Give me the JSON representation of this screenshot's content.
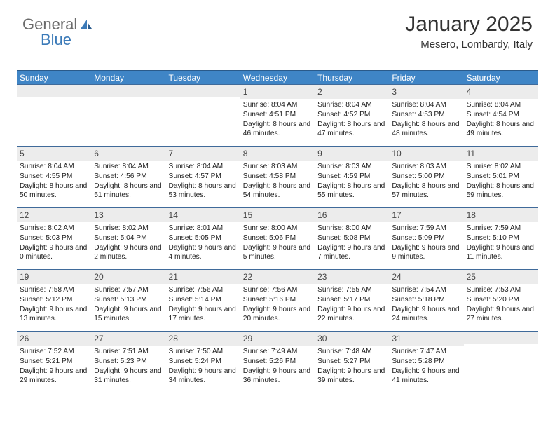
{
  "logo": {
    "text1": "General",
    "text2": "Blue"
  },
  "title": "January 2025",
  "location": "Mesero, Lombardy, Italy",
  "colors": {
    "header_bg": "#3f85c6",
    "header_text": "#ffffff",
    "row_border": "#3f6a9a",
    "daynum_bg": "#ececec",
    "body_text": "#222222",
    "logo_gray": "#6b6b6b",
    "logo_blue": "#3b7ab8"
  },
  "daynames": [
    "Sunday",
    "Monday",
    "Tuesday",
    "Wednesday",
    "Thursday",
    "Friday",
    "Saturday"
  ],
  "weeks": [
    [
      null,
      null,
      null,
      {
        "n": "1",
        "sr": "8:04 AM",
        "ss": "4:51 PM",
        "dl": "8 hours and 46 minutes."
      },
      {
        "n": "2",
        "sr": "8:04 AM",
        "ss": "4:52 PM",
        "dl": "8 hours and 47 minutes."
      },
      {
        "n": "3",
        "sr": "8:04 AM",
        "ss": "4:53 PM",
        "dl": "8 hours and 48 minutes."
      },
      {
        "n": "4",
        "sr": "8:04 AM",
        "ss": "4:54 PM",
        "dl": "8 hours and 49 minutes."
      }
    ],
    [
      {
        "n": "5",
        "sr": "8:04 AM",
        "ss": "4:55 PM",
        "dl": "8 hours and 50 minutes."
      },
      {
        "n": "6",
        "sr": "8:04 AM",
        "ss": "4:56 PM",
        "dl": "8 hours and 51 minutes."
      },
      {
        "n": "7",
        "sr": "8:04 AM",
        "ss": "4:57 PM",
        "dl": "8 hours and 53 minutes."
      },
      {
        "n": "8",
        "sr": "8:03 AM",
        "ss": "4:58 PM",
        "dl": "8 hours and 54 minutes."
      },
      {
        "n": "9",
        "sr": "8:03 AM",
        "ss": "4:59 PM",
        "dl": "8 hours and 55 minutes."
      },
      {
        "n": "10",
        "sr": "8:03 AM",
        "ss": "5:00 PM",
        "dl": "8 hours and 57 minutes."
      },
      {
        "n": "11",
        "sr": "8:02 AM",
        "ss": "5:01 PM",
        "dl": "8 hours and 59 minutes."
      }
    ],
    [
      {
        "n": "12",
        "sr": "8:02 AM",
        "ss": "5:03 PM",
        "dl": "9 hours and 0 minutes."
      },
      {
        "n": "13",
        "sr": "8:02 AM",
        "ss": "5:04 PM",
        "dl": "9 hours and 2 minutes."
      },
      {
        "n": "14",
        "sr": "8:01 AM",
        "ss": "5:05 PM",
        "dl": "9 hours and 4 minutes."
      },
      {
        "n": "15",
        "sr": "8:00 AM",
        "ss": "5:06 PM",
        "dl": "9 hours and 5 minutes."
      },
      {
        "n": "16",
        "sr": "8:00 AM",
        "ss": "5:08 PM",
        "dl": "9 hours and 7 minutes."
      },
      {
        "n": "17",
        "sr": "7:59 AM",
        "ss": "5:09 PM",
        "dl": "9 hours and 9 minutes."
      },
      {
        "n": "18",
        "sr": "7:59 AM",
        "ss": "5:10 PM",
        "dl": "9 hours and 11 minutes."
      }
    ],
    [
      {
        "n": "19",
        "sr": "7:58 AM",
        "ss": "5:12 PM",
        "dl": "9 hours and 13 minutes."
      },
      {
        "n": "20",
        "sr": "7:57 AM",
        "ss": "5:13 PM",
        "dl": "9 hours and 15 minutes."
      },
      {
        "n": "21",
        "sr": "7:56 AM",
        "ss": "5:14 PM",
        "dl": "9 hours and 17 minutes."
      },
      {
        "n": "22",
        "sr": "7:56 AM",
        "ss": "5:16 PM",
        "dl": "9 hours and 20 minutes."
      },
      {
        "n": "23",
        "sr": "7:55 AM",
        "ss": "5:17 PM",
        "dl": "9 hours and 22 minutes."
      },
      {
        "n": "24",
        "sr": "7:54 AM",
        "ss": "5:18 PM",
        "dl": "9 hours and 24 minutes."
      },
      {
        "n": "25",
        "sr": "7:53 AM",
        "ss": "5:20 PM",
        "dl": "9 hours and 27 minutes."
      }
    ],
    [
      {
        "n": "26",
        "sr": "7:52 AM",
        "ss": "5:21 PM",
        "dl": "9 hours and 29 minutes."
      },
      {
        "n": "27",
        "sr": "7:51 AM",
        "ss": "5:23 PM",
        "dl": "9 hours and 31 minutes."
      },
      {
        "n": "28",
        "sr": "7:50 AM",
        "ss": "5:24 PM",
        "dl": "9 hours and 34 minutes."
      },
      {
        "n": "29",
        "sr": "7:49 AM",
        "ss": "5:26 PM",
        "dl": "9 hours and 36 minutes."
      },
      {
        "n": "30",
        "sr": "7:48 AM",
        "ss": "5:27 PM",
        "dl": "9 hours and 39 minutes."
      },
      {
        "n": "31",
        "sr": "7:47 AM",
        "ss": "5:28 PM",
        "dl": "9 hours and 41 minutes."
      },
      null
    ]
  ],
  "labels": {
    "sunrise": "Sunrise: ",
    "sunset": "Sunset: ",
    "daylight": "Daylight: "
  }
}
